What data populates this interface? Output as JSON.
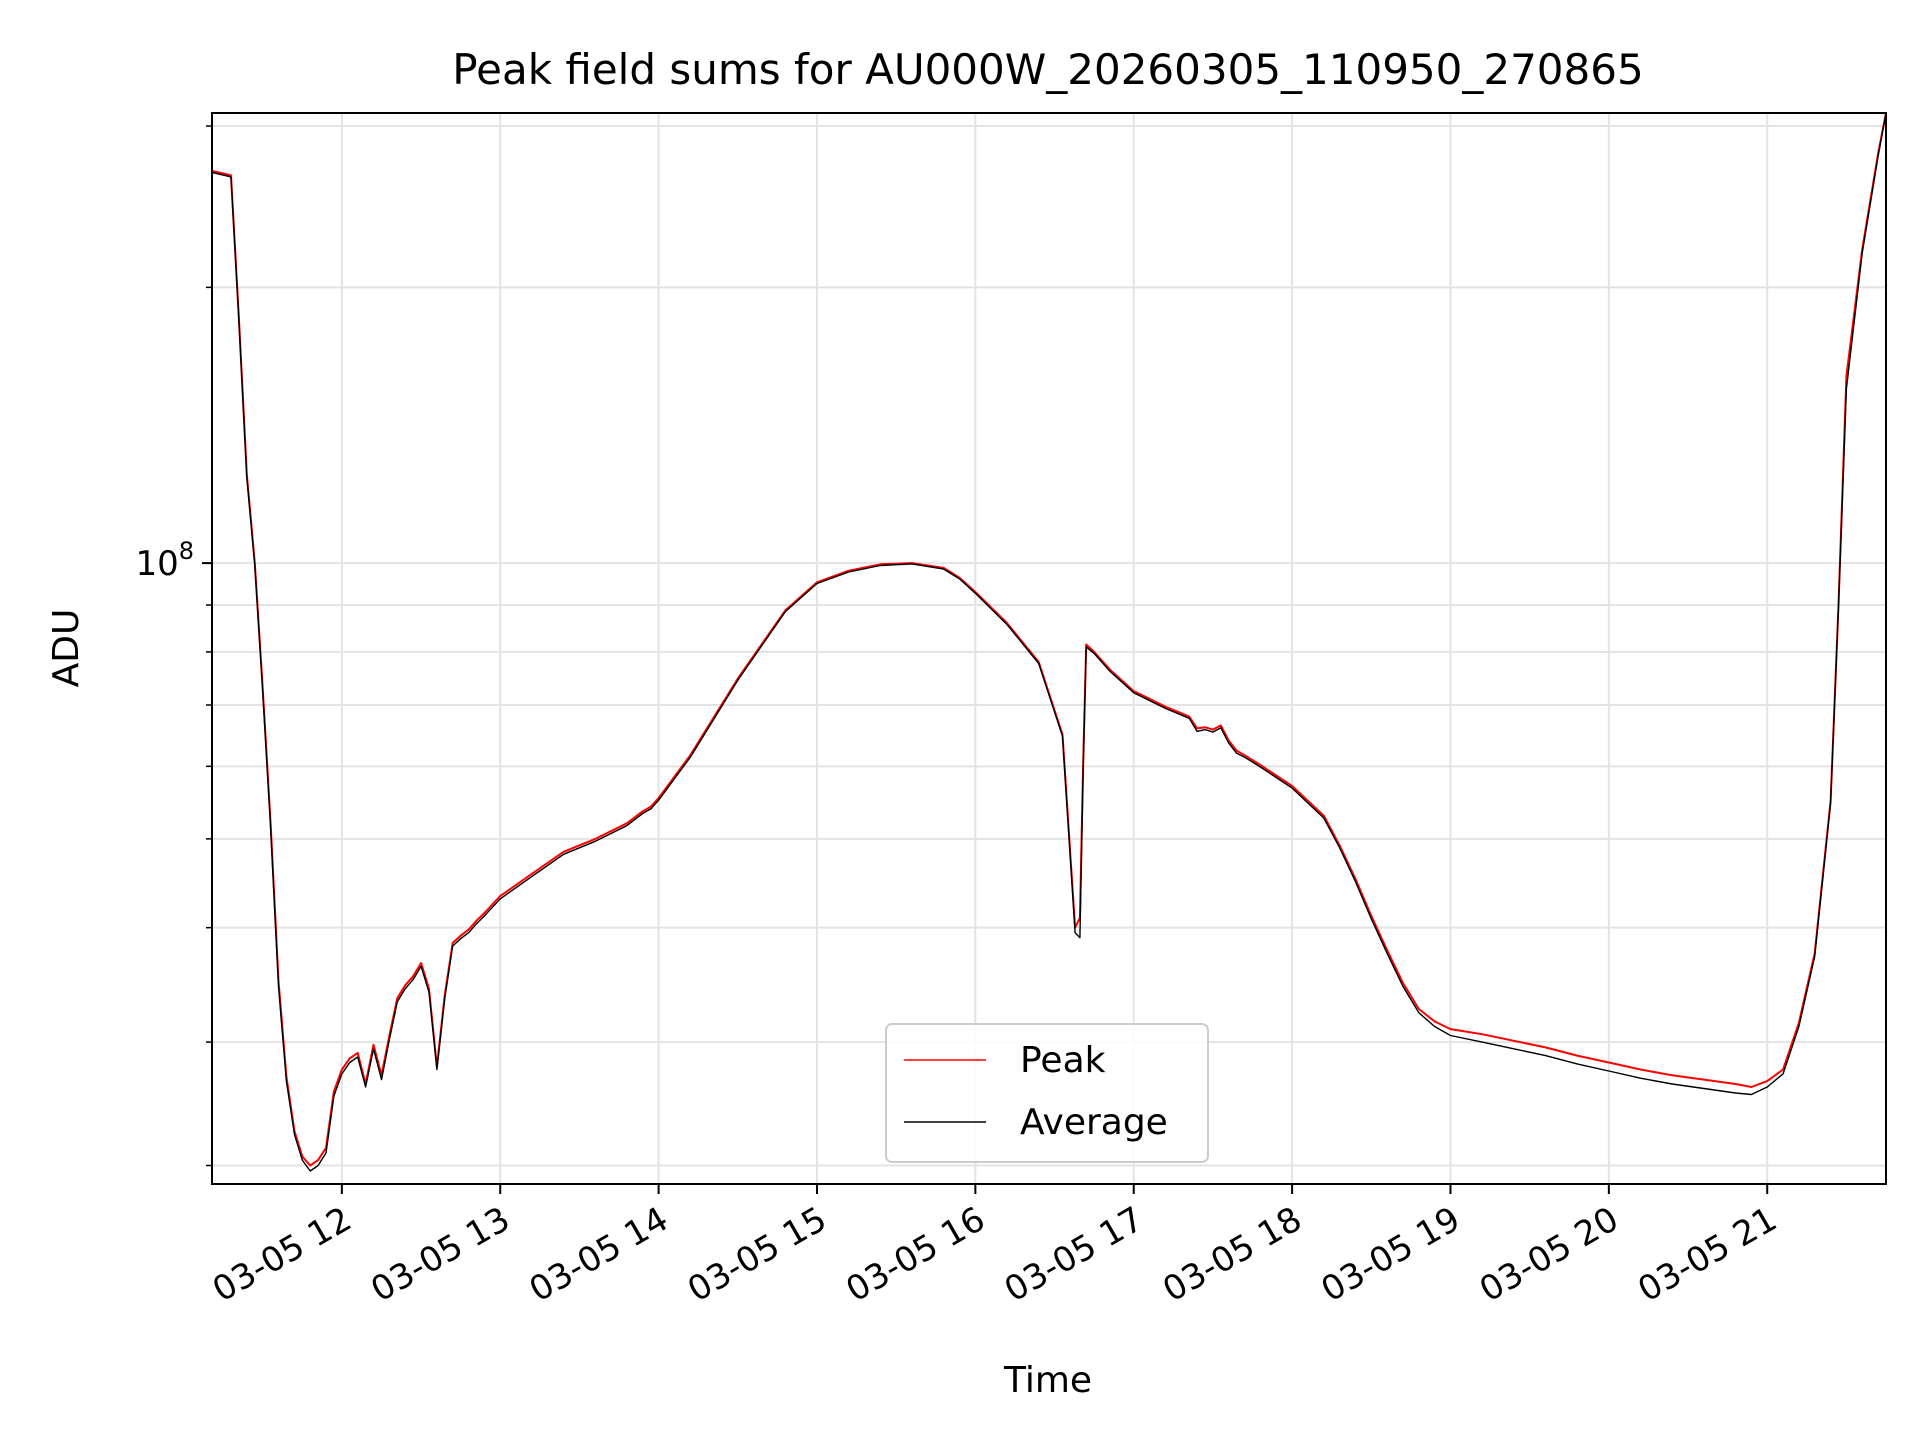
{
  "chart_data": {
    "type": "line",
    "title": "Peak field sums for AU000W_20260305_110950_270865",
    "xlabel": "Time",
    "ylabel": "ADU",
    "yscale": "log",
    "xlim_hours": [
      11.18,
      21.75
    ],
    "ylim": [
      21000000,
      310000000
    ],
    "grid": true,
    "legend_position": "lower-center",
    "x_ticks": [
      {
        "value": 12,
        "label": "03-05 12"
      },
      {
        "value": 13,
        "label": "03-05 13"
      },
      {
        "value": 14,
        "label": "03-05 14"
      },
      {
        "value": 15,
        "label": "03-05 15"
      },
      {
        "value": 16,
        "label": "03-05 16"
      },
      {
        "value": 17,
        "label": "03-05 17"
      },
      {
        "value": 18,
        "label": "03-05 18"
      },
      {
        "value": 19,
        "label": "03-05 19"
      },
      {
        "value": 20,
        "label": "03-05 20"
      },
      {
        "value": 21,
        "label": "03-05 21"
      }
    ],
    "y_major_ticks": [
      {
        "value": 100000000,
        "base": "10",
        "exponent": "8"
      }
    ],
    "y_minor_ticks": [
      22000000,
      30000000,
      40000000,
      50000000,
      60000000,
      70000000,
      80000000,
      90000000,
      200000000,
      300000000
    ],
    "series": [
      {
        "name": "Peak",
        "color": "#ff0000",
        "x": [
          11.18,
          11.3,
          11.35,
          11.4,
          11.45,
          11.5,
          11.55,
          11.6,
          11.65,
          11.7,
          11.75,
          11.8,
          11.85,
          11.9,
          11.95,
          12.0,
          12.05,
          12.1,
          12.15,
          12.2,
          12.25,
          12.3,
          12.35,
          12.4,
          12.45,
          12.5,
          12.55,
          12.6,
          12.65,
          12.7,
          12.75,
          12.8,
          12.85,
          12.9,
          12.95,
          13.0,
          13.2,
          13.4,
          13.6,
          13.8,
          13.9,
          13.95,
          14.0,
          14.2,
          14.5,
          14.8,
          15.0,
          15.2,
          15.4,
          15.6,
          15.8,
          15.9,
          16.0,
          16.2,
          16.4,
          16.55,
          16.63,
          16.66,
          16.68,
          16.7,
          16.75,
          16.85,
          17.0,
          17.2,
          17.35,
          17.4,
          17.45,
          17.5,
          17.55,
          17.6,
          17.65,
          17.7,
          17.8,
          18.0,
          18.2,
          18.3,
          18.4,
          18.5,
          18.6,
          18.7,
          18.8,
          18.9,
          19.0,
          19.2,
          19.4,
          19.6,
          19.8,
          20.0,
          20.2,
          20.4,
          20.6,
          20.8,
          20.9,
          21.0,
          21.1,
          21.2,
          21.3,
          21.4,
          21.45,
          21.5,
          21.6,
          21.7,
          21.75
        ],
        "values": [
          268000000,
          265000000,
          185000000,
          125000000,
          100000000,
          73000000,
          52000000,
          35000000,
          27500000,
          24000000,
          22500000,
          22000000,
          22300000,
          23000000,
          26500000,
          28000000,
          28800000,
          29200000,
          27000000,
          29800000,
          27600000,
          30500000,
          33500000,
          34600000,
          35400000,
          36600000,
          34300000,
          28200000,
          33800000,
          38500000,
          39200000,
          39800000,
          40700000,
          41500000,
          42400000,
          43300000,
          45800000,
          48400000,
          50000000,
          52000000,
          53600000,
          54200000,
          55400000,
          61700000,
          74800000,
          88800000,
          95300000,
          98100000,
          99700000,
          100000000,
          98800000,
          96400000,
          93000000,
          86000000,
          78000000,
          65000000,
          40000000,
          41000000,
          60000000,
          81500000,
          80000000,
          76500000,
          72500000,
          69700000,
          68000000,
          66000000,
          66200000,
          65800000,
          66500000,
          64000000,
          62400000,
          61700000,
          60200000,
          57100000,
          53000000,
          49200000,
          45200000,
          41200000,
          37800000,
          34800000,
          32600000,
          31600000,
          31000000,
          30600000,
          30100000,
          29600000,
          29000000,
          28500000,
          28000000,
          27600000,
          27300000,
          27000000,
          26800000,
          27200000,
          28000000,
          31500000,
          37500000,
          55000000,
          90000000,
          160000000,
          220000000,
          280000000,
          310000000
        ]
      },
      {
        "name": "Average",
        "color": "#000000",
        "x": [
          11.18,
          11.3,
          11.35,
          11.4,
          11.45,
          11.5,
          11.55,
          11.6,
          11.65,
          11.7,
          11.75,
          11.8,
          11.85,
          11.9,
          11.95,
          12.0,
          12.05,
          12.1,
          12.15,
          12.2,
          12.25,
          12.3,
          12.35,
          12.4,
          12.45,
          12.5,
          12.55,
          12.6,
          12.65,
          12.7,
          12.75,
          12.8,
          12.85,
          12.9,
          12.95,
          13.0,
          13.2,
          13.4,
          13.6,
          13.8,
          13.9,
          13.95,
          14.0,
          14.2,
          14.5,
          14.8,
          15.0,
          15.2,
          15.4,
          15.6,
          15.8,
          15.9,
          16.0,
          16.2,
          16.4,
          16.55,
          16.63,
          16.66,
          16.68,
          16.7,
          16.75,
          16.85,
          17.0,
          17.2,
          17.35,
          17.4,
          17.45,
          17.5,
          17.55,
          17.6,
          17.65,
          17.7,
          17.8,
          18.0,
          18.2,
          18.3,
          18.4,
          18.5,
          18.6,
          18.7,
          18.8,
          18.9,
          19.0,
          19.2,
          19.4,
          19.6,
          19.8,
          20.0,
          20.2,
          20.4,
          20.6,
          20.8,
          20.9,
          21.0,
          21.1,
          21.2,
          21.3,
          21.4,
          21.45,
          21.5,
          21.6,
          21.7,
          21.75
        ],
        "values": [
          267000000,
          264000000,
          184000000,
          124000000,
          99500000,
          72500000,
          51500000,
          34500000,
          27200000,
          23800000,
          22300000,
          21700000,
          22000000,
          22700000,
          26200000,
          27700000,
          28500000,
          28900000,
          26800000,
          29500000,
          27300000,
          30200000,
          33200000,
          34300000,
          35100000,
          36300000,
          34000000,
          28000000,
          33500000,
          38200000,
          38900000,
          39500000,
          40400000,
          41200000,
          42100000,
          43000000,
          45500000,
          48100000,
          49700000,
          51700000,
          53300000,
          53900000,
          55100000,
          61400000,
          74500000,
          88500000,
          95000000,
          97800000,
          99400000,
          99800000,
          98500000,
          96100000,
          92700000,
          85700000,
          77700000,
          64700000,
          39500000,
          39000000,
          59000000,
          81000000,
          79700000,
          76200000,
          72200000,
          69400000,
          67700000,
          65500000,
          65800000,
          65400000,
          66100000,
          63600000,
          62000000,
          61400000,
          59900000,
          56800000,
          52700000,
          48900000,
          44900000,
          40900000,
          37500000,
          34500000,
          32300000,
          31200000,
          30500000,
          30000000,
          29500000,
          29000000,
          28400000,
          27900000,
          27400000,
          27000000,
          26700000,
          26400000,
          26300000,
          26800000,
          27700000,
          31200000,
          37200000,
          54700000,
          89700000,
          155000000,
          218000000,
          278000000,
          310000000
        ]
      }
    ]
  }
}
